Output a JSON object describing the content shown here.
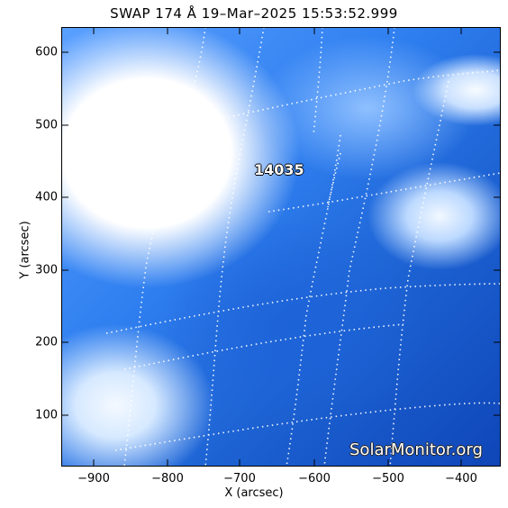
{
  "title": "SWAP 174 Å 19–Mar–2025 15:53:52.999",
  "x_axis": {
    "label": "X (arcsec)",
    "ticks": [
      "−900",
      "−800",
      "−700",
      "−600",
      "−500",
      "−400"
    ]
  },
  "y_axis": {
    "label": "Y (arcsec)",
    "ticks": [
      "600",
      "500",
      "400",
      "300",
      "200",
      "100"
    ]
  },
  "region_label": "14035",
  "watermark": "SolarMonitor.org",
  "colors": {
    "colormap_dark": "#0f46b8",
    "colormap_light": "#ffffff"
  }
}
